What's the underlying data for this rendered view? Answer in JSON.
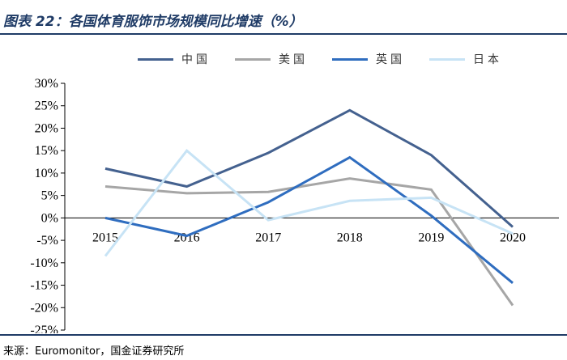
{
  "title": "图表 22：各国体育服饰市场规模同比增速（%）",
  "source": "来源：Euromonitor，国金证券研究所",
  "chart_data": {
    "type": "line",
    "title": "图表 22：各国体育服饰市场规模同比增速（%）",
    "xlabel": "",
    "ylabel": "",
    "categories": [
      "2015",
      "2016",
      "2017",
      "2018",
      "2019",
      "2020"
    ],
    "ylim": [
      -25,
      30
    ],
    "y_ticks": [
      "30%",
      "25%",
      "20%",
      "15%",
      "10%",
      "5%",
      "0%",
      "-5%",
      "-10%",
      "-15%",
      "-20%",
      "-25%"
    ],
    "grid": false,
    "legend_position": "top",
    "series": [
      {
        "name": "中国",
        "color": "#44618f",
        "values": [
          11.0,
          7.0,
          14.5,
          24.0,
          14.0,
          -2.0
        ]
      },
      {
        "name": "美国",
        "color": "#a6a6a6",
        "values": [
          7.0,
          5.5,
          5.8,
          8.8,
          6.3,
          -19.5
        ]
      },
      {
        "name": "英国",
        "color": "#2f6dbf",
        "values": [
          0.0,
          -4.0,
          3.5,
          13.5,
          0.5,
          -14.5
        ]
      },
      {
        "name": "日本",
        "color": "#c7e3f5",
        "values": [
          -8.5,
          15.0,
          -0.5,
          3.8,
          4.5,
          -3.5
        ]
      }
    ]
  }
}
